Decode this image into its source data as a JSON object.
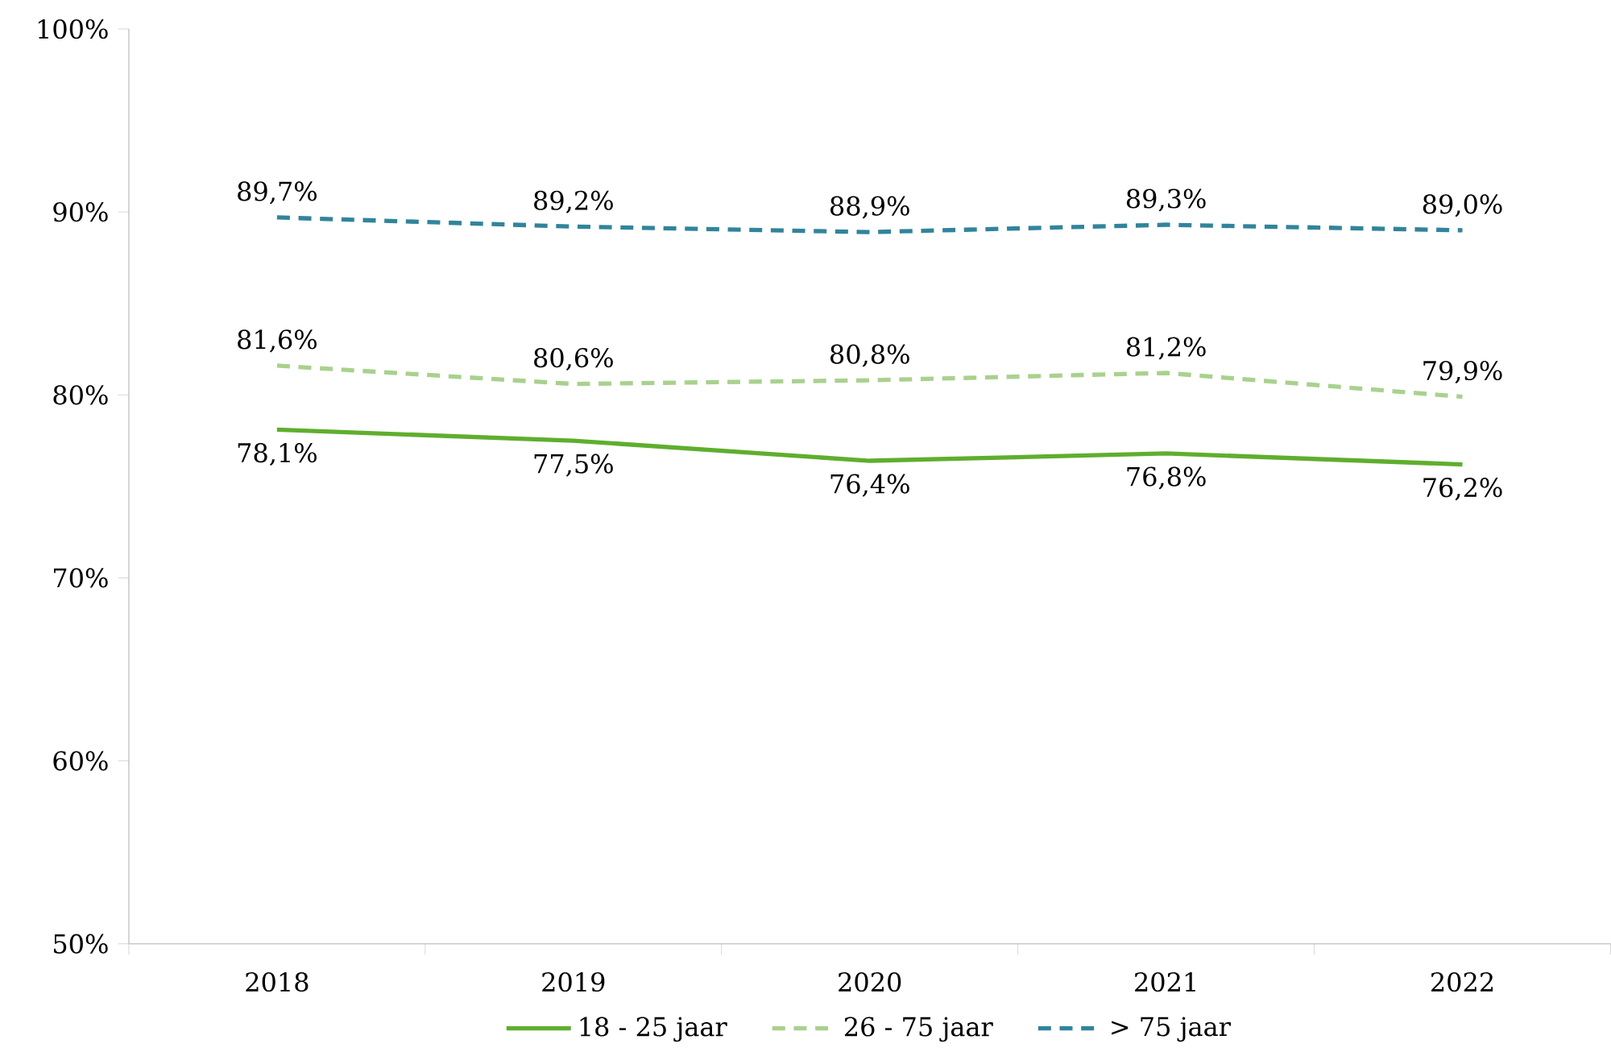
{
  "chart_data": {
    "type": "line",
    "categories": [
      "2018",
      "2019",
      "2020",
      "2021",
      "2022"
    ],
    "series": [
      {
        "name": "18 - 25 jaar",
        "color": "#5fae2e",
        "line_style": "solid",
        "values": [
          78.1,
          77.5,
          76.4,
          76.8,
          76.2
        ],
        "value_labels": [
          "78,1%",
          "77,5%",
          "76,4%",
          "76,8%",
          "76,2%"
        ]
      },
      {
        "name": "26 - 75 jaar",
        "color": "#a9d18e",
        "line_style": "dashed",
        "values": [
          81.6,
          80.6,
          80.8,
          81.2,
          79.9
        ],
        "value_labels": [
          "81,6%",
          "80,6%",
          "80,8%",
          "81,2%",
          "79,9%"
        ]
      },
      {
        "name": "> 75 jaar",
        "color": "#31849b",
        "line_style": "dashed",
        "values": [
          89.7,
          89.2,
          88.9,
          89.3,
          89.0
        ],
        "value_labels": [
          "89,7%",
          "89,2%",
          "88,9%",
          "89,3%",
          "89,0%"
        ]
      }
    ],
    "ylim": [
      50,
      100
    ],
    "yticks": [
      {
        "value": 50,
        "label": "50%"
      },
      {
        "value": 60,
        "label": "60%"
      },
      {
        "value": 70,
        "label": "70%"
      },
      {
        "value": 80,
        "label": "80%"
      },
      {
        "value": 90,
        "label": "90%"
      },
      {
        "value": 100,
        "label": "100%"
      }
    ],
    "legend": "bottom"
  }
}
